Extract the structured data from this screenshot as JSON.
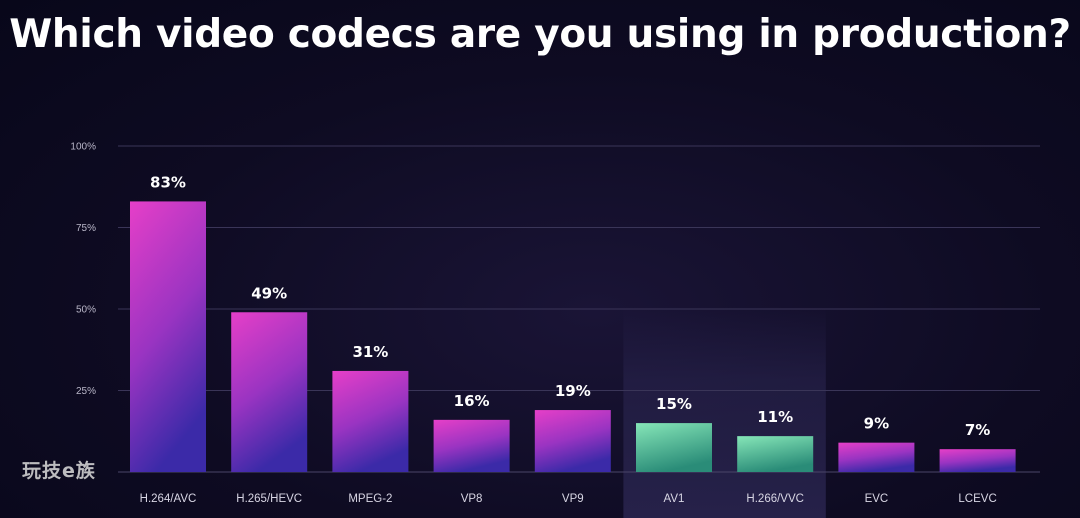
{
  "title": "Which video codecs are you using in production?",
  "watermark": "玩技e族",
  "colors": {
    "background": "#0e0b22",
    "bar_pink_top": "#e63fc8",
    "bar_pink_bottom": "#3b2aa8",
    "bar_green_top": "#86e6b8",
    "bar_green_bottom": "#2a8c78",
    "highlight_band": "#2a2550"
  },
  "chart_data": {
    "type": "bar",
    "title": "Which video codecs are you using in production?",
    "xlabel": "",
    "ylabel": "",
    "categories": [
      "H.264/AVC",
      "H.265/HEVC",
      "MPEG-2",
      "VP8",
      "VP9",
      "AV1",
      "H.266/VVC",
      "EVC",
      "LCEVC"
    ],
    "values": [
      83,
      49,
      31,
      16,
      19,
      15,
      11,
      9,
      7
    ],
    "value_labels": [
      "83%",
      "49%",
      "31%",
      "16%",
      "19%",
      "15%",
      "11%",
      "9%",
      "7%"
    ],
    "highlighted": [
      "AV1",
      "H.266/VVC"
    ],
    "ylim": [
      0,
      100
    ],
    "yticks": [
      25,
      50,
      75,
      100
    ],
    "ytick_labels": [
      "25%",
      "50%",
      "75%",
      "100%"
    ],
    "grid": true,
    "legend": "none"
  }
}
